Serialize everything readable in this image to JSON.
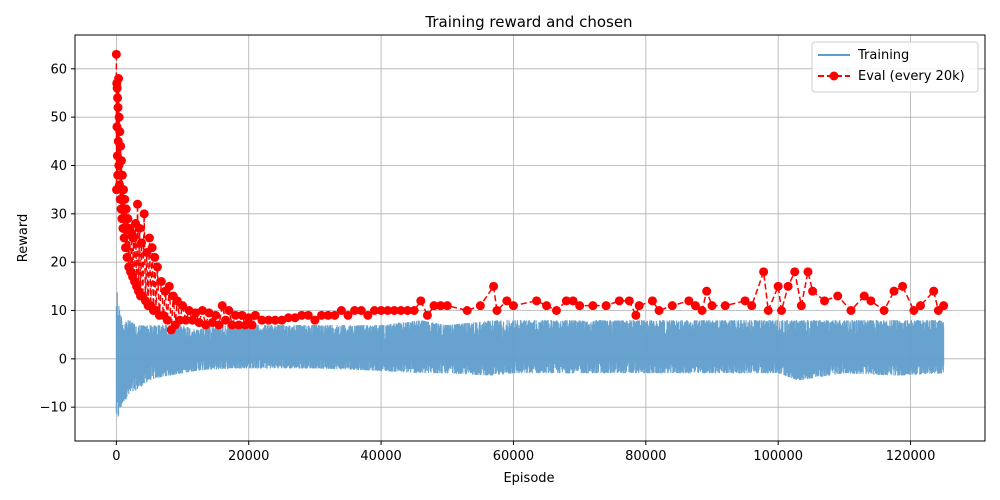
{
  "chart_data": {
    "type": "line",
    "title": "Training reward and chosen",
    "xlabel": "Episode",
    "ylabel": "Reward",
    "xlim": [
      -6250,
      131250
    ],
    "ylim": [
      -17,
      67
    ],
    "xticks": [
      0,
      20000,
      40000,
      60000,
      80000,
      100000,
      120000
    ],
    "xtick_labels": [
      "0",
      "20000",
      "40000",
      "60000",
      "80000",
      "100000",
      "120000"
    ],
    "yticks": [
      -10,
      0,
      10,
      20,
      30,
      40,
      50,
      60
    ],
    "ytick_labels": [
      "−10",
      "0",
      "10",
      "20",
      "30",
      "40",
      "50",
      "60"
    ],
    "grid": true,
    "legend_position": "top-right",
    "series": [
      {
        "name": "Training",
        "style": "solid line",
        "color": "#5f9ecb",
        "envelope": {
          "x": [
            0,
            150,
            500,
            1000,
            2000,
            3000,
            4000,
            5000,
            6000,
            8000,
            10000,
            12000,
            15000,
            18000,
            20000,
            25000,
            30000,
            40000,
            46000,
            50000,
            57000,
            60000,
            70000,
            80000,
            90000,
            100000,
            103000,
            110000,
            118000,
            125000
          ],
          "upper": [
            15,
            14,
            10,
            8,
            8,
            7,
            7,
            7,
            7,
            7,
            7,
            6,
            7,
            7,
            7,
            7,
            7,
            7,
            8,
            7,
            8,
            8,
            8,
            8,
            8,
            8,
            8,
            8,
            8,
            8
          ],
          "lower": [
            -12,
            -13,
            -11,
            -9,
            -7.5,
            -6.5,
            -5.5,
            -4.5,
            -4,
            -3.5,
            -3,
            -2.5,
            -2.2,
            -2,
            -2,
            -2,
            -2,
            -2.5,
            -3,
            -3,
            -3.5,
            -3,
            -3,
            -3,
            -3,
            -3,
            -4.5,
            -3,
            -3.5,
            -3
          ]
        }
      },
      {
        "name": "Eval (every 20k)",
        "style": "dashed line with circle markers",
        "color": "#ff0000",
        "points": [
          [
            0,
            63
          ],
          [
            30,
            35
          ],
          [
            60,
            57
          ],
          [
            90,
            48
          ],
          [
            120,
            56
          ],
          [
            150,
            42
          ],
          [
            180,
            54
          ],
          [
            210,
            38
          ],
          [
            250,
            52
          ],
          [
            290,
            45
          ],
          [
            330,
            58
          ],
          [
            370,
            40
          ],
          [
            420,
            50
          ],
          [
            470,
            36
          ],
          [
            520,
            47
          ],
          [
            580,
            33
          ],
          [
            640,
            44
          ],
          [
            700,
            31
          ],
          [
            770,
            41
          ],
          [
            840,
            29
          ],
          [
            910,
            38
          ],
          [
            990,
            27
          ],
          [
            1080,
            35
          ],
          [
            1170,
            25
          ],
          [
            1270,
            33
          ],
          [
            1380,
            23
          ],
          [
            1490,
            31
          ],
          [
            1610,
            21
          ],
          [
            1740,
            29
          ],
          [
            1870,
            19
          ],
          [
            2000,
            27
          ],
          [
            2150,
            18
          ],
          [
            2300,
            26
          ],
          [
            2450,
            17
          ],
          [
            2600,
            25
          ],
          [
            2750,
            16
          ],
          [
            2900,
            28
          ],
          [
            3050,
            15
          ],
          [
            3200,
            32
          ],
          [
            3350,
            14
          ],
          [
            3500,
            27
          ],
          [
            3650,
            13
          ],
          [
            3800,
            24
          ],
          [
            4000,
            13
          ],
          [
            4200,
            30
          ],
          [
            4400,
            12
          ],
          [
            4600,
            22
          ],
          [
            4800,
            11
          ],
          [
            5000,
            25
          ],
          [
            5200,
            11
          ],
          [
            5400,
            23
          ],
          [
            5600,
            10
          ],
          [
            5800,
            21
          ],
          [
            6000,
            10
          ],
          [
            6200,
            19
          ],
          [
            6500,
            9
          ],
          [
            6800,
            16
          ],
          [
            7100,
            9
          ],
          [
            7400,
            14
          ],
          [
            7700,
            8
          ],
          [
            8000,
            15
          ],
          [
            8300,
            6
          ],
          [
            8600,
            13
          ],
          [
            8900,
            7
          ],
          [
            9200,
            12
          ],
          [
            9600,
            8
          ],
          [
            10000,
            11
          ],
          [
            10500,
            8
          ],
          [
            11000,
            10
          ],
          [
            11500,
            8
          ],
          [
            12000,
            9.5
          ],
          [
            12500,
            7.5
          ],
          [
            13000,
            10
          ],
          [
            13500,
            7
          ],
          [
            14000,
            9.5
          ],
          [
            14500,
            7.5
          ],
          [
            15000,
            9
          ],
          [
            15500,
            7
          ],
          [
            16000,
            11
          ],
          [
            16500,
            8
          ],
          [
            17000,
            10
          ],
          [
            17500,
            7
          ],
          [
            18000,
            9
          ],
          [
            18500,
            7
          ],
          [
            19000,
            9
          ],
          [
            19500,
            7
          ],
          [
            20000,
            8.5
          ],
          [
            20500,
            7
          ],
          [
            21000,
            9
          ],
          [
            22000,
            8
          ],
          [
            23000,
            8
          ],
          [
            24000,
            8
          ],
          [
            25000,
            8
          ],
          [
            26000,
            8.5
          ],
          [
            27000,
            8.5
          ],
          [
            28000,
            9
          ],
          [
            29000,
            9
          ],
          [
            30000,
            8
          ],
          [
            31000,
            9
          ],
          [
            32000,
            9
          ],
          [
            33000,
            9
          ],
          [
            34000,
            10
          ],
          [
            35000,
            9
          ],
          [
            36000,
            10
          ],
          [
            37000,
            10
          ],
          [
            38000,
            9
          ],
          [
            39000,
            10
          ],
          [
            40000,
            10
          ],
          [
            41000,
            10
          ],
          [
            42000,
            10
          ],
          [
            43000,
            10
          ],
          [
            44000,
            10
          ],
          [
            45000,
            10
          ],
          [
            46000,
            12
          ],
          [
            47000,
            9
          ],
          [
            48000,
            11
          ],
          [
            49000,
            11
          ],
          [
            50000,
            11
          ],
          [
            53000,
            10
          ],
          [
            55000,
            11
          ],
          [
            57000,
            15
          ],
          [
            57500,
            10
          ],
          [
            59000,
            12
          ],
          [
            60000,
            11
          ],
          [
            63500,
            12
          ],
          [
            65000,
            11
          ],
          [
            66500,
            10
          ],
          [
            68000,
            12
          ],
          [
            69000,
            12
          ],
          [
            70000,
            11
          ],
          [
            72000,
            11
          ],
          [
            74000,
            11
          ],
          [
            76000,
            12
          ],
          [
            77500,
            12
          ],
          [
            78500,
            9
          ],
          [
            79000,
            11
          ],
          [
            81000,
            12
          ],
          [
            82000,
            10
          ],
          [
            84000,
            11
          ],
          [
            86500,
            12
          ],
          [
            87500,
            11
          ],
          [
            88500,
            10
          ],
          [
            89200,
            14
          ],
          [
            90000,
            11
          ],
          [
            92000,
            11
          ],
          [
            95000,
            12
          ],
          [
            96000,
            11
          ],
          [
            97800,
            18
          ],
          [
            98500,
            10
          ],
          [
            100000,
            15
          ],
          [
            100500,
            10
          ],
          [
            101500,
            15
          ],
          [
            102500,
            18
          ],
          [
            103500,
            11
          ],
          [
            104500,
            18
          ],
          [
            105200,
            14
          ],
          [
            107000,
            12
          ],
          [
            109000,
            13
          ],
          [
            111000,
            10
          ],
          [
            113000,
            13
          ],
          [
            114000,
            12
          ],
          [
            116000,
            10
          ],
          [
            117500,
            14
          ],
          [
            118800,
            15
          ],
          [
            120500,
            10
          ],
          [
            121500,
            11
          ],
          [
            123500,
            14
          ],
          [
            124200,
            10
          ],
          [
            125000,
            11
          ]
        ]
      }
    ]
  }
}
